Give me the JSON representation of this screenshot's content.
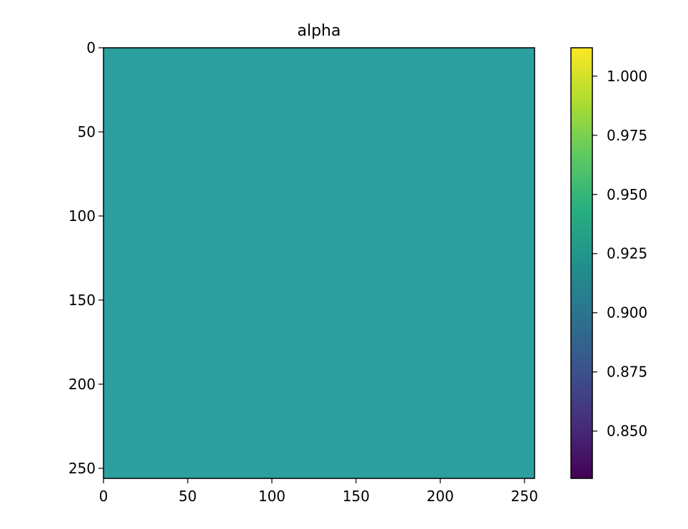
{
  "chart_data": {
    "type": "heatmap",
    "title": "alpha",
    "xlabel": "",
    "ylabel": "",
    "xlim": [
      0,
      256
    ],
    "ylim": [
      256,
      0
    ],
    "x_ticks": [
      0,
      50,
      100,
      150,
      200,
      250
    ],
    "y_ticks": [
      0,
      50,
      100,
      150,
      200,
      250
    ],
    "x_tick_labels": [
      "0",
      "50",
      "100",
      "150",
      "200",
      "250"
    ],
    "y_tick_labels": [
      "0",
      "50",
      "100",
      "150",
      "200",
      "250"
    ],
    "grid": false,
    "colormap": "viridis",
    "field_value": 0.92,
    "field_color": "#2ca09e",
    "colorbar": {
      "range": [
        0.83,
        1.012
      ],
      "ticks": [
        0.85,
        0.875,
        0.9,
        0.925,
        0.95,
        0.975,
        1.0
      ],
      "tick_labels": [
        "0.850",
        "0.875",
        "0.900",
        "0.925",
        "0.950",
        "0.975",
        "1.000"
      ],
      "colors": [
        "#440154",
        "#472d7b",
        "#3b528b",
        "#2c728e",
        "#21918c",
        "#28ae80",
        "#5ec962",
        "#addc30",
        "#fde725"
      ]
    }
  }
}
